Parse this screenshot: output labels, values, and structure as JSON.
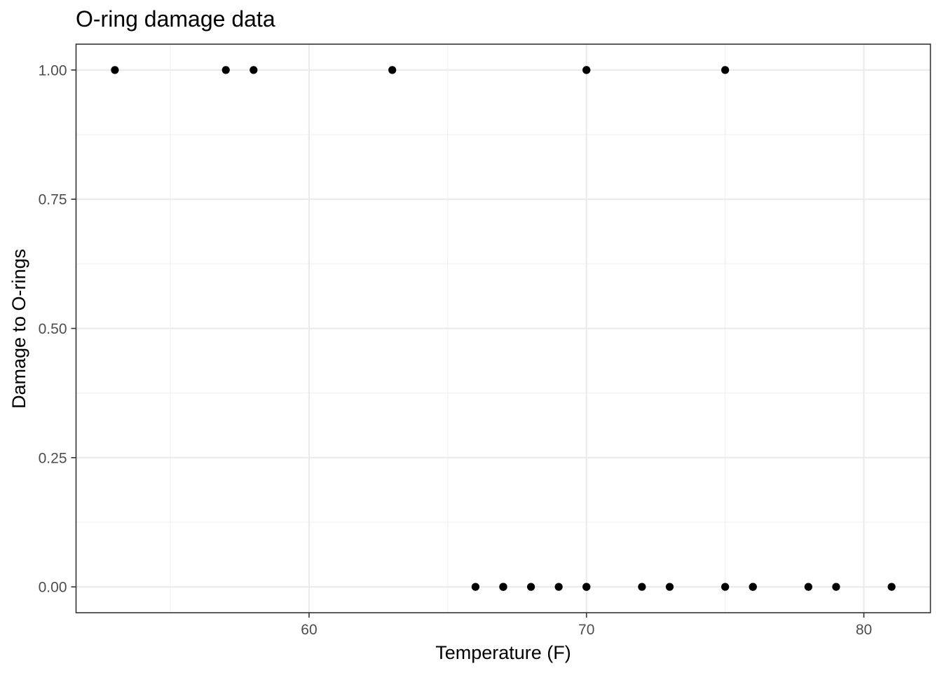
{
  "chart_data": {
    "type": "scatter",
    "title": "O-ring damage data",
    "xlabel": "Temperature (F)",
    "ylabel": "Damage to O-rings",
    "xlim": [
      51.6,
      82.4
    ],
    "ylim": [
      -0.05,
      1.05
    ],
    "x_ticks": [
      60,
      70,
      80
    ],
    "x_tick_labels": [
      "60",
      "70",
      "80"
    ],
    "x_minor_ticks": [
      55,
      65,
      75
    ],
    "y_ticks": [
      0,
      0.25,
      0.5,
      0.75,
      1
    ],
    "y_tick_labels": [
      "0.00",
      "0.25",
      "0.50",
      "0.75",
      "1.00"
    ],
    "y_minor_ticks": [
      0.125,
      0.375,
      0.625,
      0.875
    ],
    "grid": true,
    "legend": "none",
    "point_color": "#000000",
    "points": [
      {
        "x": 53,
        "y": 1
      },
      {
        "x": 57,
        "y": 1
      },
      {
        "x": 58,
        "y": 1
      },
      {
        "x": 63,
        "y": 1
      },
      {
        "x": 66,
        "y": 0
      },
      {
        "x": 67,
        "y": 0
      },
      {
        "x": 67,
        "y": 0
      },
      {
        "x": 67,
        "y": 0
      },
      {
        "x": 68,
        "y": 0
      },
      {
        "x": 69,
        "y": 0
      },
      {
        "x": 70,
        "y": 0
      },
      {
        "x": 70,
        "y": 1
      },
      {
        "x": 70,
        "y": 0
      },
      {
        "x": 70,
        "y": 1
      },
      {
        "x": 72,
        "y": 0
      },
      {
        "x": 73,
        "y": 0
      },
      {
        "x": 75,
        "y": 0
      },
      {
        "x": 75,
        "y": 1
      },
      {
        "x": 76,
        "y": 0
      },
      {
        "x": 76,
        "y": 0
      },
      {
        "x": 78,
        "y": 0
      },
      {
        "x": 79,
        "y": 0
      },
      {
        "x": 81,
        "y": 0
      }
    ]
  }
}
